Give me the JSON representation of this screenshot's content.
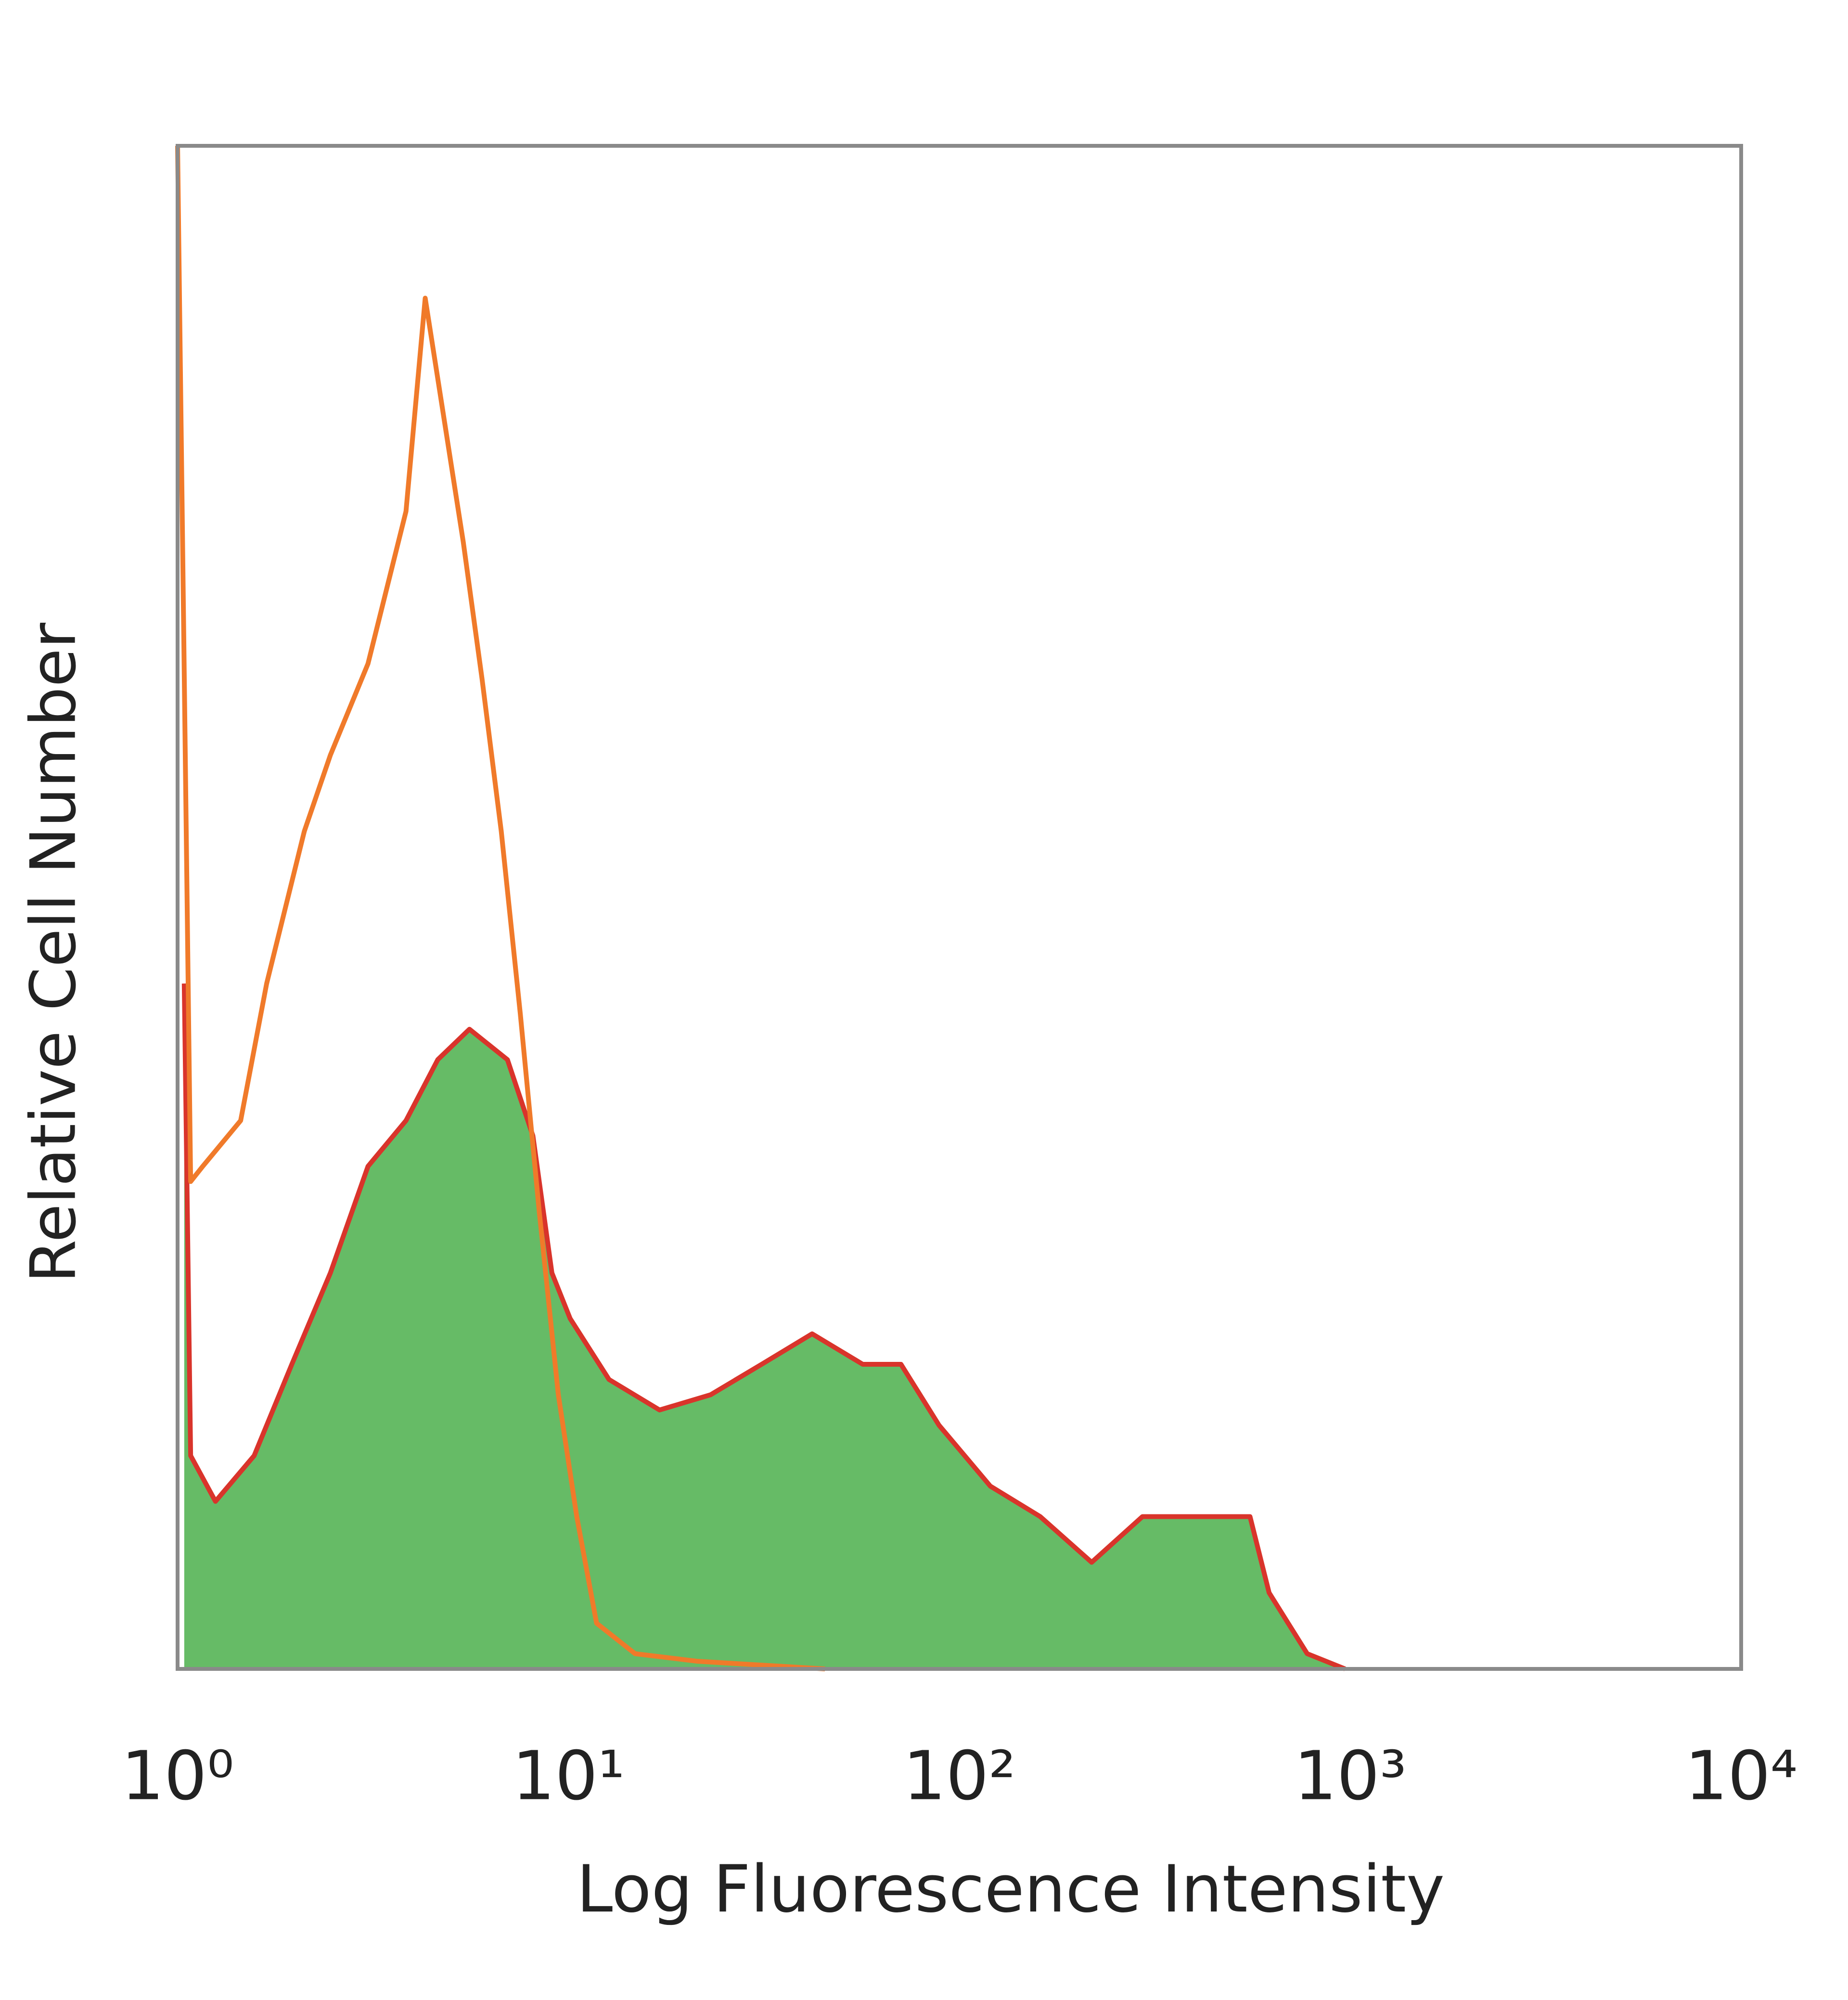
{
  "chart_data": {
    "type": "histogram-overlay",
    "x_label": "Log Fluorescence Intensity",
    "y_label": "Relative Cell Number",
    "xlog": true,
    "xlim": [
      1,
      10000
    ],
    "xticks": [
      {
        "value": 1,
        "label": "10⁰"
      },
      {
        "value": 10,
        "label": "10¹"
      },
      {
        "value": 100,
        "label": "10²"
      },
      {
        "value": 1000,
        "label": "10³"
      },
      {
        "value": 10000,
        "label": "10⁴"
      }
    ],
    "ylim": [
      0,
      100
    ],
    "grid": false,
    "series": [
      {
        "color": "#f07a2a",
        "x": [
          1,
          1.08,
          1.16,
          1.45,
          1.69,
          2.11,
          2.46,
          3.07,
          3.84,
          4.3,
          4.81,
          5.38,
          6.01,
          6.73,
          7.53,
          8.42,
          9.42,
          10.5,
          11.8,
          14.8,
          21.4,
          45.3
        ],
        "values": [
          100,
          32,
          33,
          36,
          45,
          55,
          60,
          66,
          76,
          90,
          82,
          74,
          65,
          55,
          43,
          30,
          18,
          10,
          3,
          1,
          0.5,
          0
        ]
      },
      {
        "color": "#d9342b",
        "fill": "#66bb66",
        "x": [
          1.04,
          1.08,
          1.25,
          1.57,
          1.96,
          2.46,
          3.07,
          3.84,
          4.63,
          5.58,
          6.98,
          8.11,
          9.07,
          10.1,
          12.7,
          17.1,
          23.1,
          31.2,
          42,
          56.6,
          70.9,
          88.7,
          120,
          161,
          218,
          294,
          427,
          554,
          620,
          776,
          970
        ],
        "values": [
          45,
          14,
          11,
          14,
          20,
          26,
          33,
          36,
          40,
          42,
          40,
          35,
          26,
          23,
          19,
          17,
          18,
          20,
          22,
          20,
          20,
          16,
          12,
          10,
          7,
          10,
          10,
          10,
          5,
          1,
          0
        ]
      }
    ]
  }
}
